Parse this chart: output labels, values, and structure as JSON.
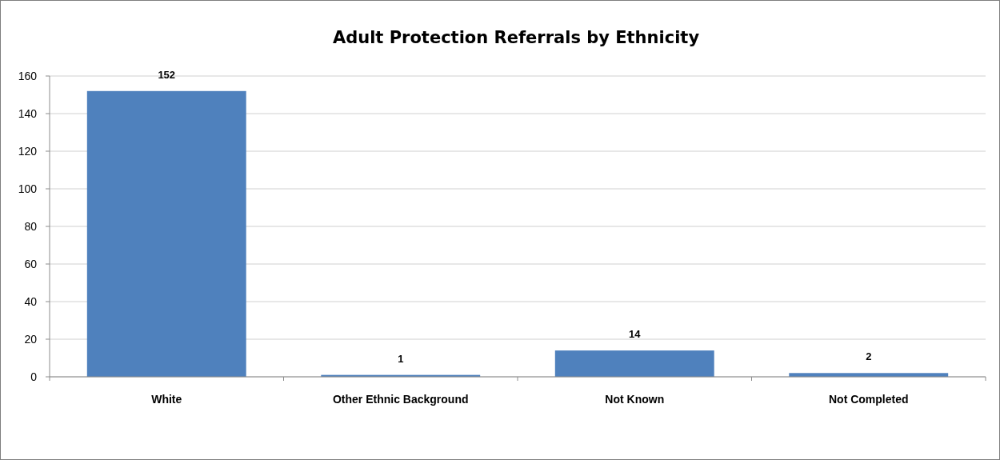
{
  "chart_data": {
    "type": "bar",
    "title": "Adult Protection Referrals by Ethnicity",
    "categories": [
      "White",
      "Other Ethnic Background",
      "Not Known",
      "Not Completed"
    ],
    "values": [
      152,
      1,
      14,
      2
    ],
    "color": "#4f81bd",
    "ylim": [
      0,
      160
    ],
    "yticks": [
      0,
      20,
      40,
      60,
      80,
      100,
      120,
      140,
      160
    ],
    "grid": "y",
    "data_labels": true
  }
}
